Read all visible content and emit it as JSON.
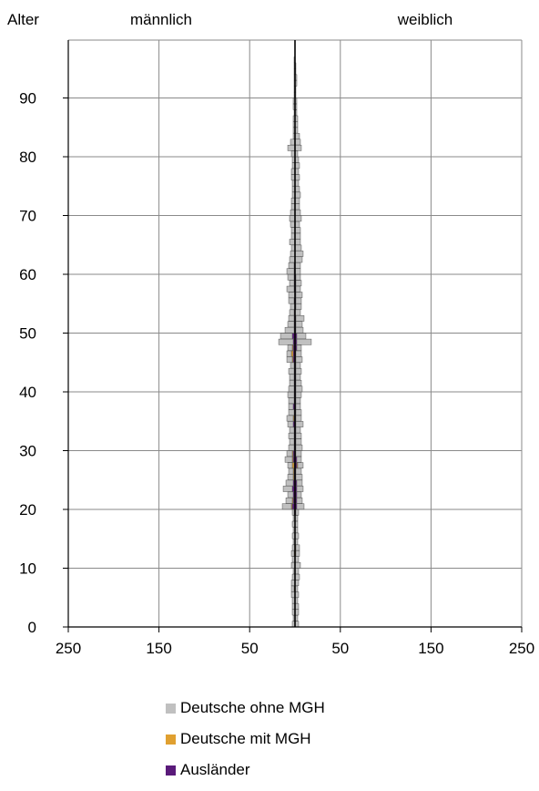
{
  "chart_data": {
    "type": "bar",
    "orientation": "horizontal-pyramid",
    "labels": {
      "y_title": "Alter",
      "left_side": "männlich",
      "right_side": "weiblich"
    },
    "xlim": [
      -250,
      250
    ],
    "ylim": [
      0,
      99
    ],
    "x_ticks": [
      {
        "value": -250,
        "label": "250"
      },
      {
        "value": -150,
        "label": "150"
      },
      {
        "value": -50,
        "label": "50"
      },
      {
        "value": 50,
        "label": "50"
      },
      {
        "value": 150,
        "label": "150"
      },
      {
        "value": 250,
        "label": "250"
      }
    ],
    "y_ticks": [
      {
        "value": 0,
        "label": "0"
      },
      {
        "value": 10,
        "label": "10"
      },
      {
        "value": 20,
        "label": "20"
      },
      {
        "value": 30,
        "label": "30"
      },
      {
        "value": 40,
        "label": "40"
      },
      {
        "value": 50,
        "label": "50"
      },
      {
        "value": 60,
        "label": "60"
      },
      {
        "value": 70,
        "label": "70"
      },
      {
        "value": 80,
        "label": "80"
      },
      {
        "value": 90,
        "label": "90"
      }
    ],
    "grid": true,
    "legend_position": "bottom",
    "ages": [
      0,
      1,
      2,
      3,
      4,
      5,
      6,
      7,
      8,
      9,
      10,
      11,
      12,
      13,
      14,
      15,
      16,
      17,
      18,
      19,
      20,
      21,
      22,
      23,
      24,
      25,
      26,
      27,
      28,
      29,
      30,
      31,
      32,
      33,
      34,
      35,
      36,
      37,
      38,
      39,
      40,
      41,
      42,
      43,
      44,
      45,
      46,
      47,
      48,
      49,
      50,
      51,
      52,
      53,
      54,
      55,
      56,
      57,
      58,
      59,
      60,
      61,
      62,
      63,
      64,
      65,
      66,
      67,
      68,
      69,
      70,
      71,
      72,
      73,
      74,
      75,
      76,
      77,
      78,
      79,
      80,
      81,
      82,
      83,
      84,
      85,
      86,
      87,
      88,
      89,
      90,
      91,
      92,
      93,
      94,
      95,
      96,
      97,
      98,
      99
    ],
    "series": [
      {
        "name": "Deutsche ohne MGH",
        "color": "#c0c0c0",
        "male": [
          3,
          2,
          3,
          3,
          3,
          4,
          3,
          4,
          3,
          2,
          4,
          3,
          3,
          3,
          2,
          3,
          2,
          3,
          2,
          2,
          10,
          7,
          6,
          10,
          8,
          6,
          5,
          5,
          8,
          6,
          6,
          5,
          6,
          5,
          6,
          7,
          6,
          5,
          6,
          7,
          6,
          5,
          5,
          6,
          4,
          6,
          5,
          5,
          16,
          13,
          10,
          7,
          6,
          5,
          5,
          6,
          7,
          8,
          5,
          7,
          8,
          6,
          6,
          5,
          4,
          6,
          4,
          4,
          5,
          6,
          5,
          4,
          4,
          3,
          3,
          3,
          4,
          4,
          3,
          3,
          4,
          8,
          5,
          2,
          2,
          2,
          2,
          1,
          2,
          2,
          1,
          1,
          1,
          1,
          1,
          1,
          1,
          0,
          0,
          0
        ],
        "female": [
          4,
          3,
          4,
          4,
          3,
          4,
          3,
          4,
          5,
          4,
          6,
          4,
          4,
          4,
          3,
          4,
          3,
          3,
          3,
          3,
          8,
          6,
          5,
          7,
          6,
          7,
          6,
          6,
          5,
          6,
          7,
          6,
          6,
          5,
          8,
          6,
          6,
          5,
          5,
          6,
          7,
          6,
          5,
          6,
          5,
          7,
          6,
          5,
          16,
          10,
          8,
          7,
          9,
          6,
          6,
          6,
          7,
          5,
          6,
          5,
          6,
          6,
          8,
          9,
          7,
          6,
          6,
          6,
          5,
          7,
          6,
          5,
          5,
          6,
          5,
          4,
          5,
          4,
          5,
          4,
          3,
          7,
          6,
          5,
          3,
          3,
          3,
          2,
          2,
          2,
          1,
          1,
          2,
          2,
          1,
          1,
          0,
          0,
          0,
          0
        ]
      },
      {
        "name": "Deutsche mit MGH",
        "color": "#e0a030",
        "male": [
          0,
          0,
          0,
          0,
          0,
          0,
          1,
          0,
          0,
          0,
          0,
          0,
          1,
          0,
          0,
          0,
          0,
          0,
          0,
          0,
          1,
          1,
          0,
          0,
          0,
          1,
          1,
          2,
          1,
          1,
          0,
          0,
          0,
          0,
          0,
          1,
          0,
          0,
          0,
          0,
          0,
          0,
          0,
          0,
          0,
          1,
          2,
          1,
          0,
          0,
          0,
          0,
          0,
          0,
          0,
          0,
          0,
          0,
          0,
          0,
          0,
          0,
          0,
          0,
          0,
          0,
          0,
          0,
          0,
          0,
          0,
          0,
          0,
          0,
          0,
          0,
          0,
          0,
          0,
          0,
          0,
          0,
          0,
          0,
          0,
          0,
          0,
          0,
          0,
          0,
          0,
          0,
          0,
          0,
          0,
          0,
          0,
          0,
          0,
          0
        ],
        "female": [
          0,
          0,
          0,
          0,
          0,
          0,
          0,
          0,
          0,
          0,
          0,
          0,
          1,
          1,
          0,
          0,
          0,
          0,
          0,
          0,
          0,
          0,
          0,
          0,
          0,
          0,
          0,
          1,
          0,
          0,
          0,
          0,
          0,
          0,
          0,
          0,
          0,
          0,
          0,
          0,
          0,
          0,
          0,
          0,
          0,
          0,
          0,
          0,
          0,
          0,
          0,
          0,
          0,
          0,
          0,
          0,
          0,
          0,
          0,
          0,
          0,
          0,
          0,
          0,
          0,
          0,
          0,
          0,
          0,
          0,
          0,
          0,
          0,
          0,
          0,
          0,
          0,
          0,
          0,
          0,
          0,
          0,
          0,
          0,
          0,
          0,
          0,
          0,
          0,
          0,
          0,
          0,
          0,
          0,
          0,
          0,
          0,
          0,
          0,
          0
        ]
      },
      {
        "name": "Ausländer",
        "color": "#5a1a7a",
        "male": [
          0,
          0,
          0,
          0,
          0,
          0,
          0,
          0,
          0,
          0,
          0,
          0,
          0,
          0,
          0,
          0,
          0,
          0,
          0,
          1,
          3,
          2,
          2,
          3,
          2,
          1,
          1,
          1,
          2,
          2,
          1,
          1,
          1,
          1,
          2,
          1,
          1,
          2,
          1,
          1,
          1,
          1,
          1,
          1,
          1,
          2,
          2,
          2,
          2,
          3,
          1,
          1,
          1,
          1,
          0,
          1,
          0,
          1,
          1,
          1,
          1,
          1,
          0,
          0,
          0,
          0,
          0,
          0,
          0,
          0,
          0,
          0,
          0,
          0,
          0,
          0,
          0,
          0,
          0,
          0,
          0,
          0,
          0,
          0,
          0,
          0,
          0,
          0,
          0,
          0,
          0,
          0,
          0,
          0,
          0,
          0,
          0,
          0,
          0,
          0
        ],
        "female": [
          0,
          0,
          0,
          0,
          0,
          0,
          0,
          0,
          0,
          0,
          0,
          0,
          0,
          0,
          0,
          0,
          0,
          0,
          0,
          1,
          2,
          2,
          2,
          2,
          2,
          1,
          1,
          2,
          2,
          1,
          1,
          1,
          1,
          1,
          1,
          1,
          1,
          1,
          1,
          1,
          1,
          1,
          1,
          1,
          1,
          1,
          1,
          2,
          2,
          2,
          1,
          1,
          1,
          0,
          1,
          1,
          1,
          1,
          1,
          1,
          0,
          0,
          0,
          0,
          0,
          0,
          0,
          0,
          0,
          0,
          0,
          0,
          0,
          0,
          0,
          0,
          0,
          0,
          0,
          0,
          0,
          0,
          0,
          0,
          0,
          0,
          0,
          0,
          0,
          0,
          0,
          0,
          0,
          0,
          0,
          0,
          0,
          0,
          0,
          0
        ]
      }
    ]
  }
}
